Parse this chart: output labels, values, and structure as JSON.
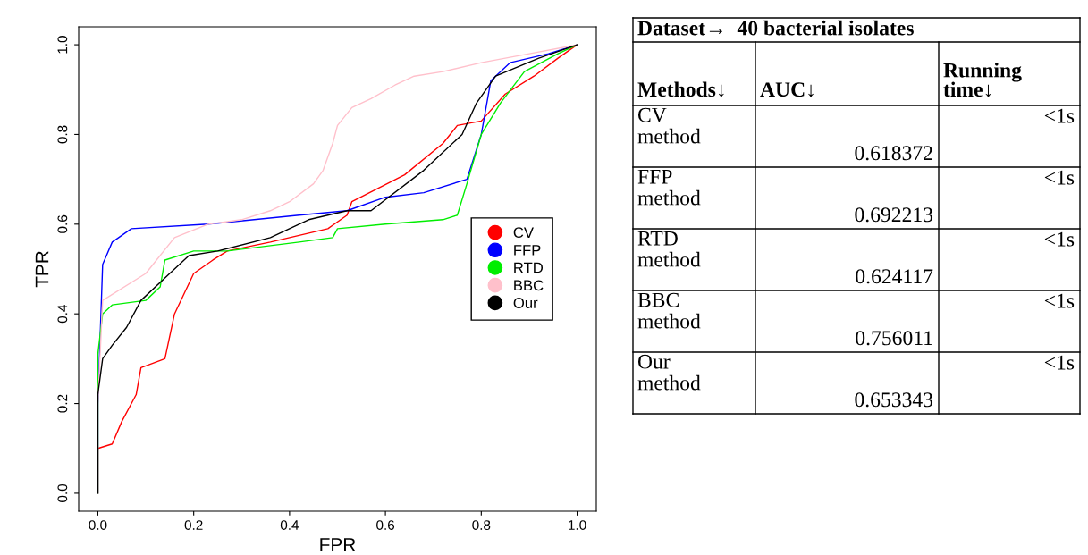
{
  "chart_data": [
    {
      "type": "line",
      "xlabel": "FPR",
      "ylabel": "TPR",
      "xlim": [
        -0.04,
        1.04
      ],
      "ylim": [
        -0.04,
        1.04
      ],
      "xticks": [
        {
          "value": 0,
          "label": "0.0"
        },
        0.2,
        0.4,
        0.6,
        0.8,
        {
          "value": 1,
          "label": "1.0"
        }
      ],
      "yticks": [
        {
          "value": 0,
          "label": "0.0"
        },
        0.2,
        0.4,
        0.6,
        0.8,
        {
          "value": 1,
          "label": "1.0"
        }
      ],
      "grid": false,
      "legend": "right",
      "marker": "none",
      "line_style": "solid",
      "series": [
        {
          "name": "CV",
          "color": "#ff0000",
          "x": [
            0,
            0,
            0.03,
            0.05,
            0.08,
            0.09,
            0.14,
            0.16,
            0.2,
            0.24,
            0.27,
            0.36,
            0.48,
            0.52,
            0.53,
            0.64,
            0.72,
            0.75,
            0.8,
            0.85,
            0.91,
            0.96,
            1
          ],
          "values": [
            0,
            0.1,
            0.11,
            0.16,
            0.22,
            0.28,
            0.3,
            0.4,
            0.49,
            0.52,
            0.54,
            0.56,
            0.59,
            0.62,
            0.65,
            0.71,
            0.78,
            0.82,
            0.83,
            0.89,
            0.93,
            0.97,
            1
          ]
        },
        {
          "name": "FFP",
          "color": "#0000ff",
          "x": [
            0,
            0,
            0.01,
            0.03,
            0.07,
            0.23,
            0.42,
            0.52,
            0.6,
            0.68,
            0.77,
            0.8,
            0.82,
            0.86,
            0.94,
            1
          ],
          "values": [
            0,
            0.2,
            0.51,
            0.56,
            0.59,
            0.6,
            0.62,
            0.63,
            0.66,
            0.67,
            0.7,
            0.8,
            0.92,
            0.96,
            0.98,
            1
          ]
        },
        {
          "name": "RTD",
          "color": "#00ee00",
          "x": [
            0,
            0,
            0.01,
            0.03,
            0.1,
            0.13,
            0.14,
            0.2,
            0.27,
            0.42,
            0.49,
            0.5,
            0.6,
            0.72,
            0.75,
            0.77,
            0.8,
            0.84,
            0.89,
            0.96,
            1
          ],
          "values": [
            0,
            0.31,
            0.4,
            0.42,
            0.43,
            0.46,
            0.52,
            0.54,
            0.54,
            0.56,
            0.57,
            0.59,
            0.6,
            0.61,
            0.62,
            0.69,
            0.8,
            0.87,
            0.94,
            0.98,
            1
          ]
        },
        {
          "name": "BBC",
          "color": "#ffc0cb",
          "x": [
            0,
            0,
            0.01,
            0.1,
            0.16,
            0.23,
            0.3,
            0.36,
            0.4,
            0.45,
            0.47,
            0.49,
            0.5,
            0.53,
            0.57,
            0.62,
            0.66,
            0.72,
            0.8,
            0.9,
            1
          ],
          "values": [
            0,
            0.2,
            0.43,
            0.49,
            0.57,
            0.6,
            0.61,
            0.63,
            0.65,
            0.69,
            0.72,
            0.78,
            0.82,
            0.86,
            0.88,
            0.91,
            0.93,
            0.94,
            0.96,
            0.98,
            1
          ]
        },
        {
          "name": "Our",
          "color": "#000000",
          "x": [
            0,
            0,
            0.01,
            0.03,
            0.06,
            0.09,
            0.14,
            0.19,
            0.25,
            0.36,
            0.44,
            0.52,
            0.57,
            0.68,
            0.76,
            0.79,
            0.83,
            0.92,
            1
          ],
          "values": [
            0,
            0.22,
            0.3,
            0.33,
            0.37,
            0.43,
            0.48,
            0.53,
            0.54,
            0.57,
            0.61,
            0.63,
            0.63,
            0.72,
            0.8,
            0.87,
            0.93,
            0.97,
            1
          ]
        }
      ]
    },
    {
      "type": "other",
      "title": "Dataset→  40 bacterial isolates",
      "annotations": [
        "Methods↓",
        "AUC↓",
        "Running time↓",
        "CV method",
        "0.618372",
        "<1s",
        "FFP method",
        "0.692213",
        "<1s",
        "RTD method",
        "0.624117",
        "<1s",
        "BBC method",
        "0.756011",
        "<1s",
        "Our method",
        "0.653343",
        "<1s"
      ]
    }
  ]
}
